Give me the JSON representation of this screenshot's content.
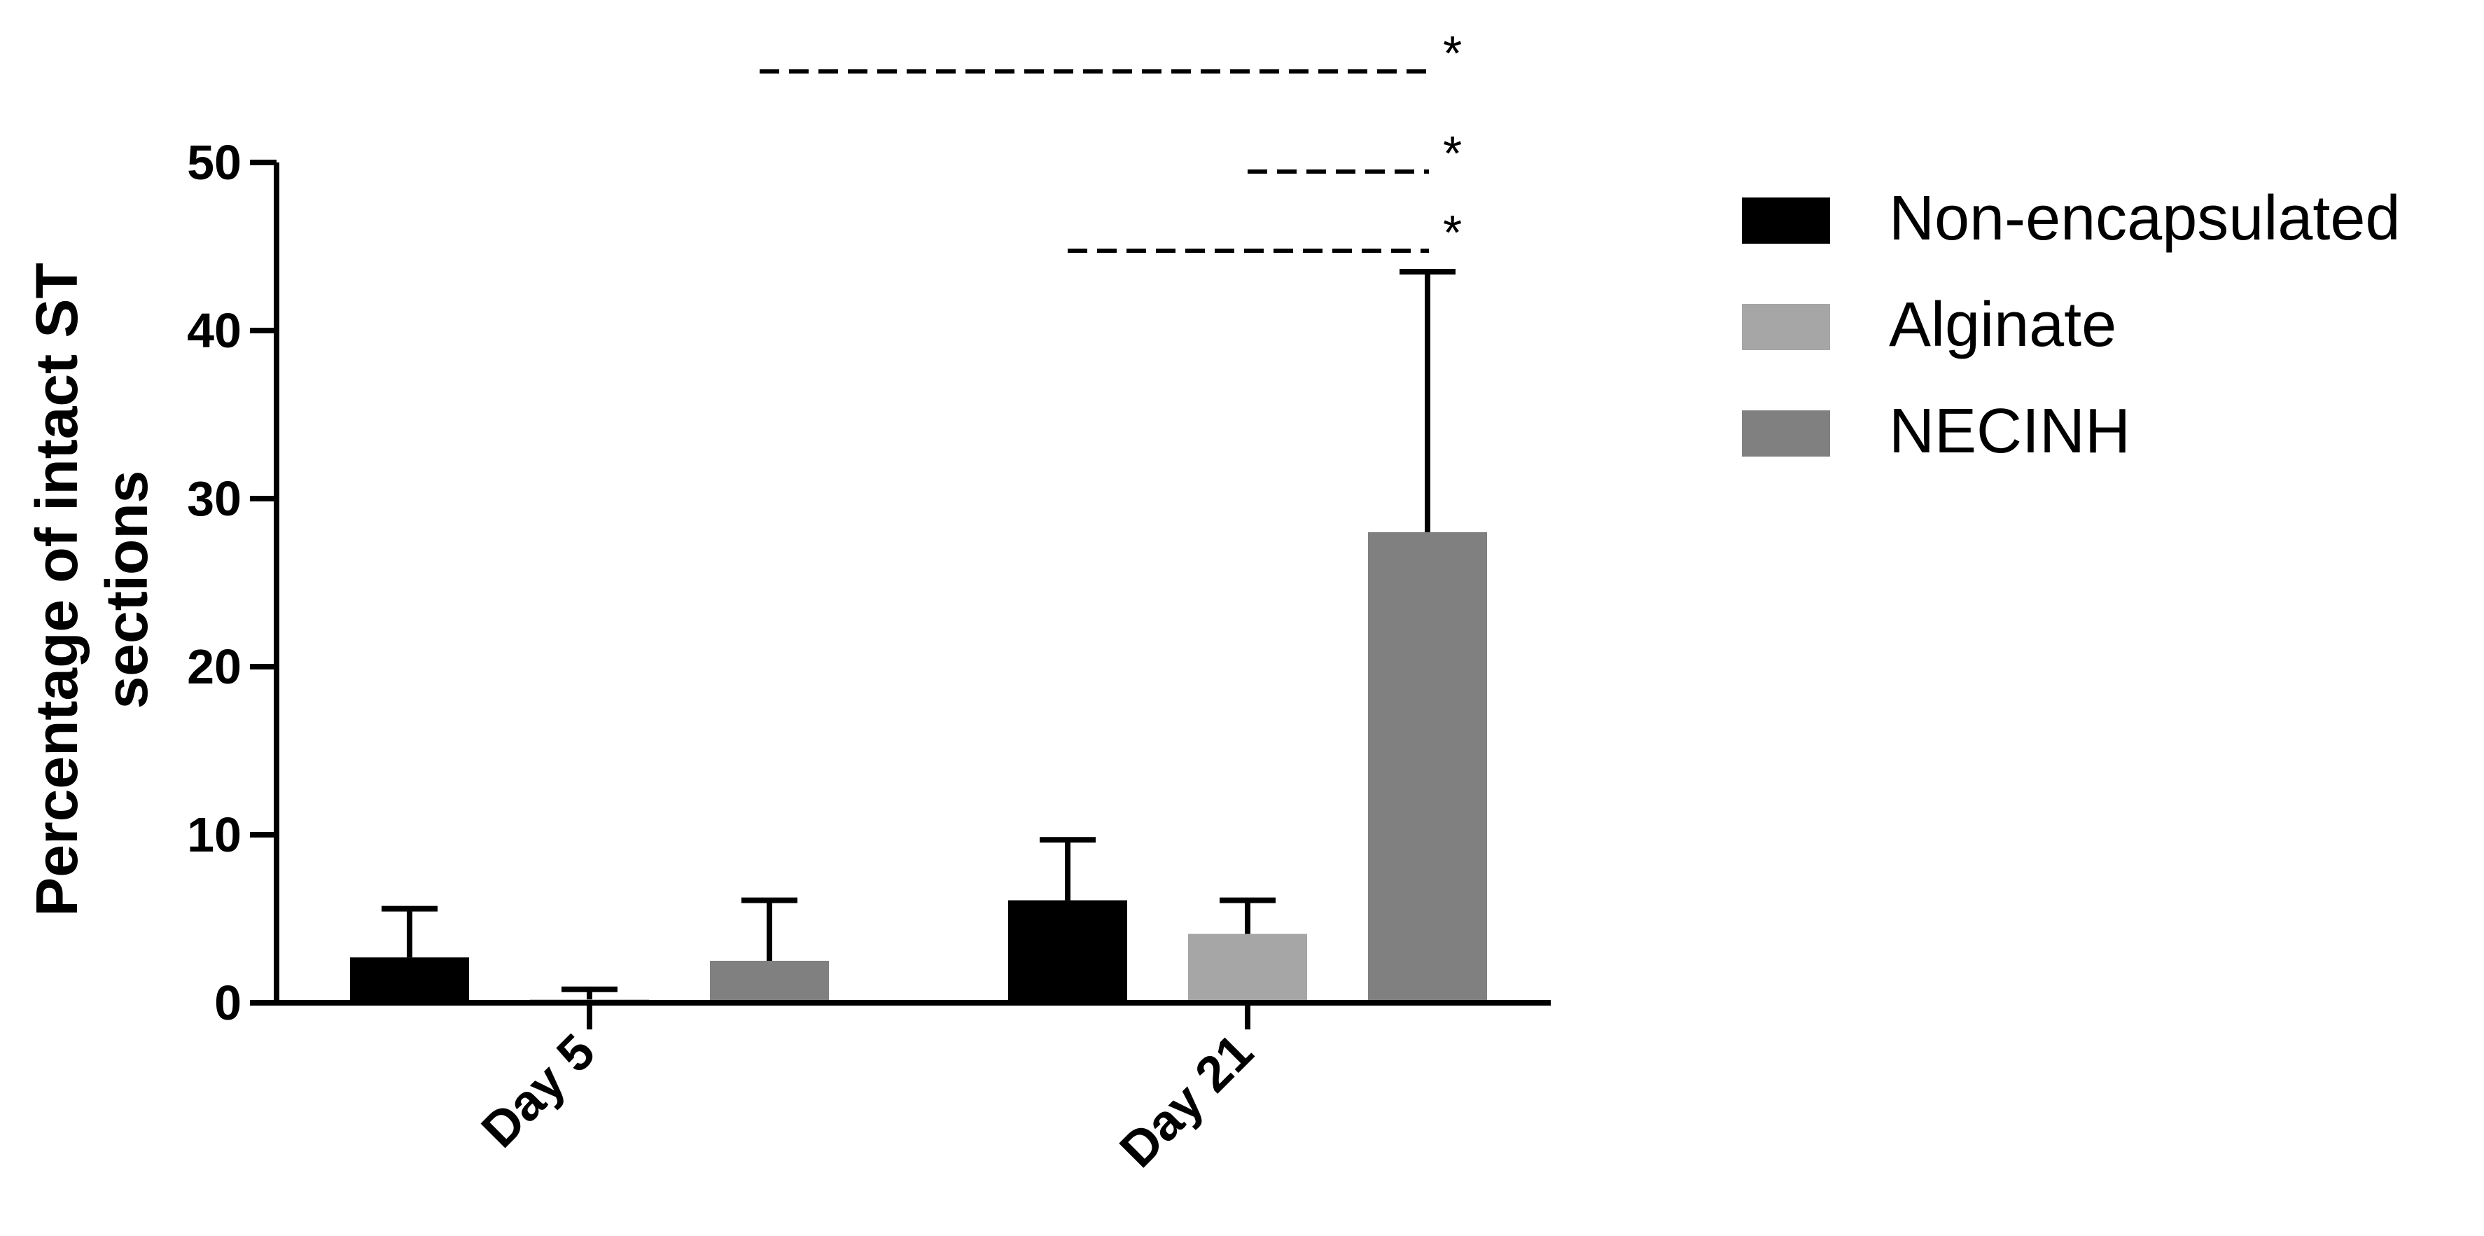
{
  "chart_data": {
    "type": "bar",
    "categories": [
      "Day 5",
      "Day 21"
    ],
    "series": [
      {
        "name": "Non-encapsulated",
        "color": "#000000",
        "values": [
          2.7,
          6.1
        ],
        "error": [
          2.9,
          3.6
        ]
      },
      {
        "name": "Alginate",
        "color": "#a6a6a6",
        "values": [
          0.2,
          4.1
        ],
        "error": [
          0.6,
          2.0
        ]
      },
      {
        "name": "NECINH",
        "color": "#808080",
        "values": [
          2.5,
          28.0
        ],
        "error": [
          3.6,
          15.5
        ]
      }
    ],
    "ylabel": [
      "Percentage of intact ST",
      "sections"
    ],
    "ylim": [
      0,
      50
    ],
    "yticks": [
      "0",
      "10",
      "20",
      "30",
      "40",
      "50"
    ],
    "grid": false,
    "legend_position": "right",
    "significance": [
      {
        "from_series": "Non-encapsulated",
        "from_category": "Day 5",
        "to_series": "NECINH",
        "to_category": "Day 21",
        "label": "*"
      },
      {
        "from_series": "Alginate",
        "from_category": "Day 21",
        "to_series": "NECINH",
        "to_category": "Day 21",
        "label": "*"
      },
      {
        "from_series": "Non-encapsulated",
        "from_category": "Day 21",
        "to_series": "NECINH",
        "to_category": "Day 21",
        "label": "*"
      }
    ]
  }
}
